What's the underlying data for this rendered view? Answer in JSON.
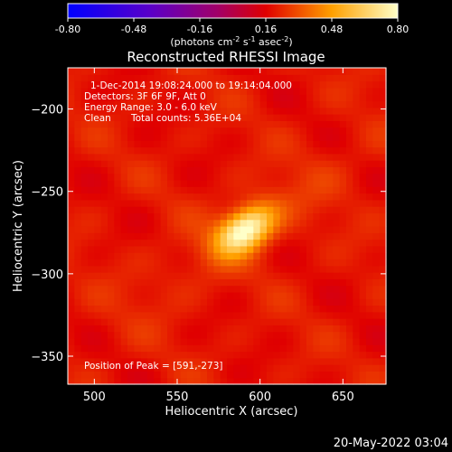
{
  "chart_data": {
    "type": "heatmap",
    "title": "Reconstructed RHESSI Image",
    "xlabel": "Heliocentric X (arcsec)",
    "ylabel": "Heliocentric Y (arcsec)",
    "xlim": [
      484,
      676
    ],
    "ylim": [
      -367,
      -175
    ],
    "xticks": [
      500,
      550,
      600,
      650
    ],
    "yticks": [
      -200,
      -250,
      -300,
      -350
    ],
    "colorbar": {
      "range": [
        -0.8,
        0.8
      ],
      "ticks": [
        "-0.80",
        "-0.48",
        "-0.16",
        "0.16",
        "0.48",
        "0.80"
      ],
      "unit_prefix": "(photons cm",
      "unit_exp1": "-2",
      "unit_mid": " s",
      "unit_exp2": "-1",
      "unit_mid2": " asec",
      "unit_exp3": "-2",
      "unit_suffix": ")"
    },
    "annotations": {
      "time_range": "1-Dec-2014 19:08:24.000 to 19:14:04.000",
      "detectors": "Detectors: 3F 6F 9F, Att 0",
      "energy": "Energy Range: 3.0 - 6.0 keV",
      "method": "Clean",
      "counts": "Total counts: 5.36E+04",
      "peak": "Position of Peak = [591,-273]"
    },
    "peak": {
      "x": 591,
      "y": -273,
      "value": 0.8
    },
    "background_level": 0.2
  },
  "footer": {
    "timestamp": "20-May-2022 03:04"
  }
}
